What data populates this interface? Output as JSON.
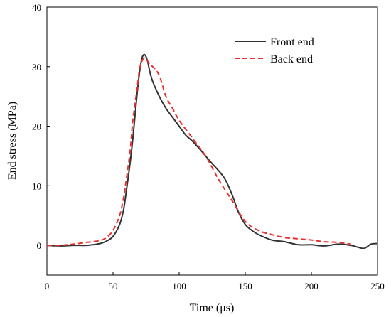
{
  "chart_data": {
    "type": "line",
    "title": "",
    "xlabel": "Time (μs)",
    "ylabel": "End stress (MPa)",
    "xlim": [
      0,
      250
    ],
    "ylim": [
      -5,
      40
    ],
    "xticks": [
      0,
      50,
      100,
      150,
      200,
      250
    ],
    "yticks": [
      0,
      10,
      20,
      30,
      40
    ],
    "xtick_labels": [
      "0",
      "50",
      "100",
      "150",
      "200",
      "250"
    ],
    "ytick_labels": [
      "0",
      "10",
      "20",
      "30",
      "40"
    ],
    "grid": false,
    "legend_position": "top-right",
    "series": [
      {
        "name": "Front end",
        "color": "#333333",
        "dash": "solid",
        "x": [
          0,
          10,
          20,
          30,
          40,
          45,
          50,
          55,
          58,
          60,
          63,
          65,
          68,
          70,
          72,
          74,
          76,
          78,
          80,
          85,
          90,
          95,
          100,
          105,
          110,
          115,
          120,
          125,
          130,
          135,
          140,
          145,
          150,
          155,
          160,
          170,
          180,
          190,
          200,
          210,
          220,
          230,
          235,
          240,
          245,
          250
        ],
        "y": [
          0,
          -0.1,
          0,
          0,
          0.3,
          0.7,
          1.5,
          3.5,
          6,
          9,
          14,
          18,
          25,
          29,
          31.5,
          32,
          31,
          29,
          27.5,
          25,
          23,
          21.5,
          20,
          18.5,
          17.5,
          16.3,
          15,
          13.7,
          12.5,
          11,
          8.5,
          5.5,
          3.5,
          2.5,
          1.8,
          0.9,
          0.6,
          0.1,
          0.1,
          -0.1,
          0.2,
          0,
          -0.3,
          -0.5,
          0.2,
          0.3
        ]
      },
      {
        "name": "Back end",
        "color": "#e8312f",
        "dash": "dashed",
        "x": [
          0,
          10,
          20,
          30,
          40,
          45,
          50,
          55,
          58,
          60,
          63,
          65,
          68,
          70,
          72,
          74,
          76,
          78,
          80,
          85,
          90,
          95,
          100,
          110,
          120,
          130,
          140,
          150,
          160,
          170,
          180,
          190,
          200,
          210,
          220,
          230
        ],
        "y": [
          0,
          0,
          0.2,
          0.5,
          0.8,
          1.3,
          2.5,
          5,
          8,
          11,
          16,
          21,
          26,
          29.5,
          31,
          31.5,
          31,
          30.3,
          30,
          28.5,
          25,
          23,
          21,
          18,
          15,
          11,
          7.5,
          4,
          2.5,
          1.8,
          1.3,
          1.1,
          0.9,
          0.6,
          0.5,
          0.2
        ]
      }
    ]
  }
}
